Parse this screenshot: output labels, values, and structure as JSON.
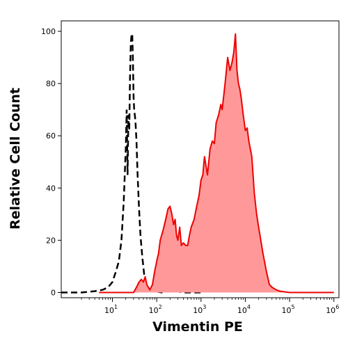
{
  "chart_data": {
    "type": "area",
    "xlabel": "Vimentin PE",
    "ylabel": "Relative Cell Count",
    "x_scale": "log",
    "xlim": [
      0.7,
      1300000
    ],
    "ylim": [
      -2,
      104
    ],
    "grid": false,
    "y_ticks": [
      0,
      20,
      40,
      60,
      80,
      100
    ],
    "x_ticks": [
      {
        "value": 10,
        "base": "10",
        "exp": "1"
      },
      {
        "value": 100,
        "base": "10",
        "exp": "2"
      },
      {
        "value": 1000,
        "base": "10",
        "exp": "3"
      },
      {
        "value": 10000,
        "base": "10",
        "exp": "4"
      },
      {
        "value": 100000,
        "base": "10",
        "exp": "5"
      },
      {
        "value": 1000000,
        "base": "10",
        "exp": "6"
      }
    ],
    "series": [
      {
        "style": "dashed",
        "color": "#000000",
        "x": [
          0.7,
          2,
          4,
          6,
          8,
          10,
          12,
          14,
          16,
          18,
          20,
          21,
          22,
          23,
          24,
          25,
          26,
          27,
          28,
          29,
          30,
          31,
          33,
          35,
          37,
          40,
          43,
          47,
          52,
          58,
          70,
          90,
          130,
          200,
          400,
          1000
        ],
        "y": [
          0,
          0,
          0.5,
          1,
          2,
          4,
          8,
          12,
          20,
          35,
          55,
          70,
          45,
          68,
          62,
          82,
          95,
          99,
          99,
          90,
          75,
          70,
          66,
          58,
          45,
          32,
          22,
          14,
          7,
          3,
          1,
          0.5,
          0,
          1,
          0,
          0
        ]
      },
      {
        "style": "filled",
        "color": "#ee0000",
        "fill": "#ff9999",
        "x": [
          5,
          30,
          35,
          40,
          45,
          50,
          55,
          60,
          70,
          80,
          90,
          100,
          110,
          120,
          140,
          160,
          180,
          200,
          220,
          240,
          260,
          280,
          300,
          330,
          360,
          400,
          450,
          500,
          550,
          600,
          700,
          800,
          900,
          1000,
          1100,
          1200,
          1400,
          1600,
          1800,
          2000,
          2200,
          2500,
          2800,
          3000,
          3500,
          4000,
          4500,
          5000,
          5500,
          6000,
          6500,
          7000,
          7500,
          8000,
          9000,
          10000,
          11000,
          12000,
          14000,
          16000,
          18000,
          20000,
          25000,
          30000,
          35000,
          40000,
          50000,
          60000,
          100000,
          1000000
        ],
        "y": [
          0,
          0,
          2,
          4,
          5,
          4,
          6,
          3,
          1,
          3,
          8,
          12,
          15,
          20,
          24,
          28,
          32,
          33,
          30,
          26,
          28,
          22,
          20,
          25,
          18,
          19,
          18,
          18,
          22,
          25,
          28,
          33,
          37,
          43,
          45,
          52,
          45,
          55,
          58,
          57,
          65,
          68,
          72,
          70,
          80,
          90,
          85,
          88,
          92,
          99,
          85,
          80,
          78,
          75,
          68,
          62,
          63,
          58,
          52,
          38,
          30,
          25,
          15,
          8,
          3,
          2,
          1,
          0.5,
          0,
          0
        ]
      }
    ]
  }
}
